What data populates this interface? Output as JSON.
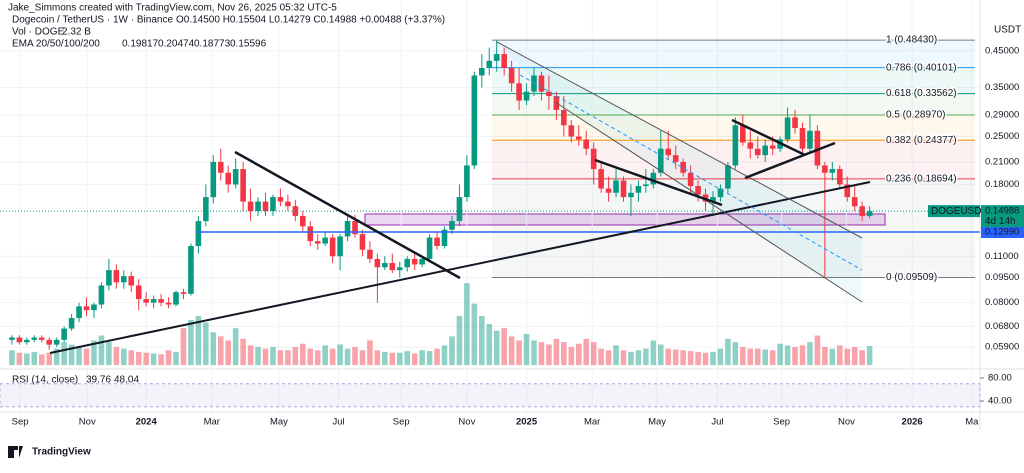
{
  "attribution": "Jake_Simmons created with TradingView.com, Nov 26, 2025 05:32 UTC-5",
  "header": {
    "symbol": "Dogecoin / TetherUS · 1W · Binance",
    "ohlc": "O0.14500 H0.15504 L0.14279 C0.14988 +0.00488 (+3.37%)",
    "volume_label": "Vol · DOGE",
    "volume_value": "2.32 B",
    "ema_label": "EMA 20/50/100/200",
    "emas": [
      {
        "text": "0.19817",
        "color": "#f23645"
      },
      {
        "text": "0.20474",
        "color": "#ff9800"
      },
      {
        "text": "0.18773",
        "color": "#00bcd4"
      },
      {
        "text": "0.15596",
        "color": "#2962ff"
      }
    ]
  },
  "currency": "USDT",
  "footer": "TradingView",
  "chart_data": {
    "type": "candlestick",
    "log_scale": true,
    "up_color": "#089981",
    "down_color": "#f23645",
    "ylim": [
      0.054,
      0.519
    ],
    "xlim": [
      -1.6,
      129.8
    ],
    "yticks": [
      {
        "value": 0.45,
        "label": "0.45000"
      },
      {
        "value": 0.35,
        "label": "0.35000"
      },
      {
        "value": 0.29,
        "label": "0.29000"
      },
      {
        "value": 0.25,
        "label": "0.25000"
      },
      {
        "value": 0.21,
        "label": "0.21000"
      },
      {
        "value": 0.18,
        "label": "0.18000"
      },
      {
        "value": 0.11,
        "label": "0.11000"
      },
      {
        "value": 0.095,
        "label": "0.09500"
      },
      {
        "value": 0.08,
        "label": "0.08000"
      },
      {
        "value": 0.068,
        "label": "0.06800"
      },
      {
        "value": 0.059,
        "label": "0.05900"
      }
    ],
    "xticks": [
      {
        "value": 1.1,
        "label": "Sep"
      },
      {
        "value": 10.1,
        "label": "Nov"
      },
      {
        "value": 18,
        "label": "2024"
      },
      {
        "value": 26.8,
        "label": "Mar"
      },
      {
        "value": 35.8,
        "label": "May"
      },
      {
        "value": 43.8,
        "label": "Jul"
      },
      {
        "value": 52.2,
        "label": "Sep"
      },
      {
        "value": 61,
        "label": "Nov"
      },
      {
        "value": 69,
        "label": "2025"
      },
      {
        "value": 77.8,
        "label": "Mar"
      },
      {
        "value": 86.5,
        "label": "May"
      },
      {
        "value": 94.6,
        "label": "Jul"
      },
      {
        "value": 103.2,
        "label": "Sep"
      },
      {
        "value": 111.9,
        "label": "Nov"
      },
      {
        "value": 120.7,
        "label": "2026"
      },
      {
        "value": 128.7,
        "label": "Ma"
      }
    ],
    "candles": [
      [
        0.062,
        0.064,
        0.06,
        0.063
      ],
      [
        0.063,
        0.064,
        0.06,
        0.061
      ],
      [
        0.061,
        0.063,
        0.06,
        0.062
      ],
      [
        0.062,
        0.064,
        0.061,
        0.063
      ],
      [
        0.063,
        0.064,
        0.061,
        0.062
      ],
      [
        0.062,
        0.063,
        0.058,
        0.06
      ],
      [
        0.06,
        0.063,
        0.059,
        0.062
      ],
      [
        0.062,
        0.068,
        0.061,
        0.067
      ],
      [
        0.067,
        0.074,
        0.066,
        0.072
      ],
      [
        0.072,
        0.08,
        0.07,
        0.078
      ],
      [
        0.078,
        0.083,
        0.073,
        0.076
      ],
      [
        0.076,
        0.08,
        0.072,
        0.079
      ],
      [
        0.079,
        0.092,
        0.077,
        0.09
      ],
      [
        0.09,
        0.108,
        0.087,
        0.1
      ],
      [
        0.1,
        0.104,
        0.088,
        0.092
      ],
      [
        0.092,
        0.1,
        0.088,
        0.096
      ],
      [
        0.096,
        0.099,
        0.086,
        0.09
      ],
      [
        0.09,
        0.094,
        0.076,
        0.082
      ],
      [
        0.082,
        0.086,
        0.078,
        0.08
      ],
      [
        0.08,
        0.084,
        0.077,
        0.082
      ],
      [
        0.082,
        0.085,
        0.078,
        0.08
      ],
      [
        0.08,
        0.083,
        0.077,
        0.079
      ],
      [
        0.079,
        0.087,
        0.078,
        0.086
      ],
      [
        0.086,
        0.088,
        0.082,
        0.085
      ],
      [
        0.085,
        0.12,
        0.084,
        0.118
      ],
      [
        0.118,
        0.145,
        0.112,
        0.14
      ],
      [
        0.14,
        0.18,
        0.135,
        0.165
      ],
      [
        0.165,
        0.22,
        0.158,
        0.21
      ],
      [
        0.21,
        0.23,
        0.185,
        0.195
      ],
      [
        0.195,
        0.205,
        0.17,
        0.18
      ],
      [
        0.18,
        0.215,
        0.175,
        0.2
      ],
      [
        0.2,
        0.21,
        0.15,
        0.16
      ],
      [
        0.16,
        0.175,
        0.14,
        0.15
      ],
      [
        0.15,
        0.165,
        0.145,
        0.16
      ],
      [
        0.16,
        0.17,
        0.145,
        0.15
      ],
      [
        0.15,
        0.168,
        0.145,
        0.165
      ],
      [
        0.165,
        0.175,
        0.155,
        0.16
      ],
      [
        0.16,
        0.168,
        0.15,
        0.155
      ],
      [
        0.155,
        0.162,
        0.14,
        0.145
      ],
      [
        0.145,
        0.15,
        0.13,
        0.135
      ],
      [
        0.135,
        0.14,
        0.118,
        0.122
      ],
      [
        0.122,
        0.128,
        0.115,
        0.12
      ],
      [
        0.12,
        0.13,
        0.118,
        0.125
      ],
      [
        0.125,
        0.128,
        0.105,
        0.11
      ],
      [
        0.11,
        0.128,
        0.1,
        0.126
      ],
      [
        0.126,
        0.145,
        0.122,
        0.14
      ],
      [
        0.14,
        0.146,
        0.125,
        0.128
      ],
      [
        0.128,
        0.132,
        0.11,
        0.115
      ],
      [
        0.115,
        0.122,
        0.105,
        0.108
      ],
      [
        0.108,
        0.112,
        0.08,
        0.102
      ],
      [
        0.102,
        0.11,
        0.1,
        0.105
      ],
      [
        0.105,
        0.112,
        0.098,
        0.1
      ],
      [
        0.1,
        0.106,
        0.095,
        0.102
      ],
      [
        0.102,
        0.11,
        0.099,
        0.108
      ],
      [
        0.108,
        0.112,
        0.1,
        0.104
      ],
      [
        0.104,
        0.11,
        0.102,
        0.108
      ],
      [
        0.108,
        0.128,
        0.106,
        0.125
      ],
      [
        0.125,
        0.13,
        0.115,
        0.118
      ],
      [
        0.118,
        0.135,
        0.116,
        0.132
      ],
      [
        0.132,
        0.145,
        0.128,
        0.14
      ],
      [
        0.14,
        0.18,
        0.135,
        0.165
      ],
      [
        0.165,
        0.22,
        0.16,
        0.205
      ],
      [
        0.205,
        0.39,
        0.2,
        0.38
      ],
      [
        0.38,
        0.44,
        0.35,
        0.4
      ],
      [
        0.4,
        0.46,
        0.38,
        0.42
      ],
      [
        0.42,
        0.484,
        0.39,
        0.44
      ],
      [
        0.44,
        0.46,
        0.38,
        0.4
      ],
      [
        0.4,
        0.42,
        0.34,
        0.36
      ],
      [
        0.36,
        0.4,
        0.3,
        0.32
      ],
      [
        0.32,
        0.36,
        0.31,
        0.34
      ],
      [
        0.34,
        0.4,
        0.33,
        0.38
      ],
      [
        0.38,
        0.39,
        0.32,
        0.34
      ],
      [
        0.34,
        0.38,
        0.3,
        0.33
      ],
      [
        0.33,
        0.34,
        0.28,
        0.3
      ],
      [
        0.3,
        0.33,
        0.25,
        0.27
      ],
      [
        0.27,
        0.28,
        0.24,
        0.25
      ],
      [
        0.25,
        0.27,
        0.235,
        0.245
      ],
      [
        0.245,
        0.26,
        0.22,
        0.23
      ],
      [
        0.23,
        0.24,
        0.18,
        0.2
      ],
      [
        0.2,
        0.21,
        0.17,
        0.175
      ],
      [
        0.175,
        0.19,
        0.16,
        0.17
      ],
      [
        0.17,
        0.2,
        0.165,
        0.185
      ],
      [
        0.185,
        0.19,
        0.16,
        0.165
      ],
      [
        0.165,
        0.18,
        0.145,
        0.17
      ],
      [
        0.17,
        0.185,
        0.16,
        0.178
      ],
      [
        0.178,
        0.2,
        0.17,
        0.18
      ],
      [
        0.18,
        0.2,
        0.175,
        0.195
      ],
      [
        0.195,
        0.26,
        0.19,
        0.23
      ],
      [
        0.23,
        0.26,
        0.215,
        0.22
      ],
      [
        0.22,
        0.235,
        0.2,
        0.21
      ],
      [
        0.21,
        0.215,
        0.19,
        0.195
      ],
      [
        0.195,
        0.205,
        0.17,
        0.178
      ],
      [
        0.178,
        0.185,
        0.16,
        0.168
      ],
      [
        0.168,
        0.175,
        0.15,
        0.16
      ],
      [
        0.16,
        0.172,
        0.145,
        0.165
      ],
      [
        0.165,
        0.18,
        0.16,
        0.175
      ],
      [
        0.175,
        0.21,
        0.17,
        0.205
      ],
      [
        0.205,
        0.285,
        0.2,
        0.27
      ],
      [
        0.27,
        0.29,
        0.235,
        0.24
      ],
      [
        0.24,
        0.26,
        0.215,
        0.23
      ],
      [
        0.23,
        0.25,
        0.215,
        0.22
      ],
      [
        0.22,
        0.245,
        0.21,
        0.235
      ],
      [
        0.235,
        0.25,
        0.22,
        0.23
      ],
      [
        0.23,
        0.25,
        0.225,
        0.245
      ],
      [
        0.245,
        0.305,
        0.24,
        0.285
      ],
      [
        0.285,
        0.3,
        0.255,
        0.265
      ],
      [
        0.265,
        0.275,
        0.22,
        0.23
      ],
      [
        0.23,
        0.29,
        0.225,
        0.26
      ],
      [
        0.26,
        0.27,
        0.2,
        0.205
      ],
      [
        0.205,
        0.21,
        0.095,
        0.195
      ],
      [
        0.195,
        0.21,
        0.185,
        0.2
      ],
      [
        0.2,
        0.205,
        0.175,
        0.18
      ],
      [
        0.18,
        0.19,
        0.16,
        0.165
      ],
      [
        0.165,
        0.18,
        0.15,
        0.155
      ],
      [
        0.155,
        0.16,
        0.14,
        0.145
      ],
      [
        0.145,
        0.15504,
        0.14279,
        0.14988
      ]
    ],
    "volume_lim": [
      0,
      11
    ],
    "volume": [
      1.8,
      1.5,
      1.4,
      1.6,
      1.3,
      1.5,
      2.0,
      2.8,
      2.5,
      2.2,
      2.0,
      3.0,
      3.6,
      2.8,
      2.2,
      2.0,
      1.8,
      1.6,
      1.5,
      1.4,
      1.3,
      1.8,
      1.6,
      4.5,
      5.5,
      6.0,
      5.2,
      4.0,
      3.5,
      3.0,
      4.5,
      3.2,
      2.4,
      2.2,
      2.0,
      2.2,
      1.8,
      1.8,
      2.2,
      2.6,
      2.0,
      1.8,
      2.4,
      2.0,
      2.5,
      2.0,
      2.2,
      1.8,
      3.0,
      1.8,
      1.6,
      1.5,
      1.5,
      1.7,
      1.4,
      1.8,
      1.7,
      2.0,
      2.4,
      3.5,
      6.0,
      10.0,
      7.5,
      6.0,
      5.0,
      4.2,
      4.5,
      3.5,
      3.0,
      3.8,
      3.0,
      2.8,
      2.5,
      3.2,
      2.8,
      2.2,
      2.6,
      3.2,
      2.8,
      2.0,
      1.8,
      2.4,
      1.8,
      1.6,
      1.8,
      2.0,
      3.0,
      2.5,
      2.0,
      1.9,
      1.8,
      1.7,
      1.6,
      1.5,
      1.6,
      2.0,
      3.2,
      2.8,
      2.2,
      2.0,
      2.0,
      1.9,
      1.8,
      2.6,
      2.4,
      2.2,
      2.4,
      2.8,
      3.6,
      2.2,
      2.0,
      2.4,
      2.0,
      2.2,
      1.8,
      2.32
    ],
    "fib_levels": [
      {
        "value": 0.4843,
        "label": "1 (0.48430)",
        "color": "#787b86"
      },
      {
        "value": 0.40101,
        "label": "0.786 (0.40101)",
        "color": "#2196f3"
      },
      {
        "value": 0.33562,
        "label": "0.618 (0.33562)",
        "color": "#089981"
      },
      {
        "value": 0.2897,
        "label": "0.5 (0.28970)",
        "color": "#4caf50"
      },
      {
        "value": 0.24377,
        "label": "0.382 (0.24377)",
        "color": "#ff9800"
      },
      {
        "value": 0.18694,
        "label": "0.236 (0.18694)",
        "color": "#f23645"
      },
      {
        "value": 0.09509,
        "label": "0 (0.09509)",
        "color": "#787b86"
      }
    ],
    "support": {
      "value": 0.1299,
      "label": "0.12990",
      "color": "#2962ff"
    },
    "last_price": {
      "symbol": "DOGEUSDT",
      "value": 0.14988,
      "countdown": "4d 14h",
      "color": "#089981"
    },
    "rsi": {
      "label": "RSI (14, close)",
      "values_text": [
        "39.76",
        "48.04"
      ],
      "ylim": [
        24.3,
        88.7
      ],
      "band": [
        30,
        70
      ],
      "yticks": [
        {
          "value": 80,
          "label": "80.00"
        },
        {
          "value": 40,
          "label": "40.00"
        }
      ]
    }
  }
}
